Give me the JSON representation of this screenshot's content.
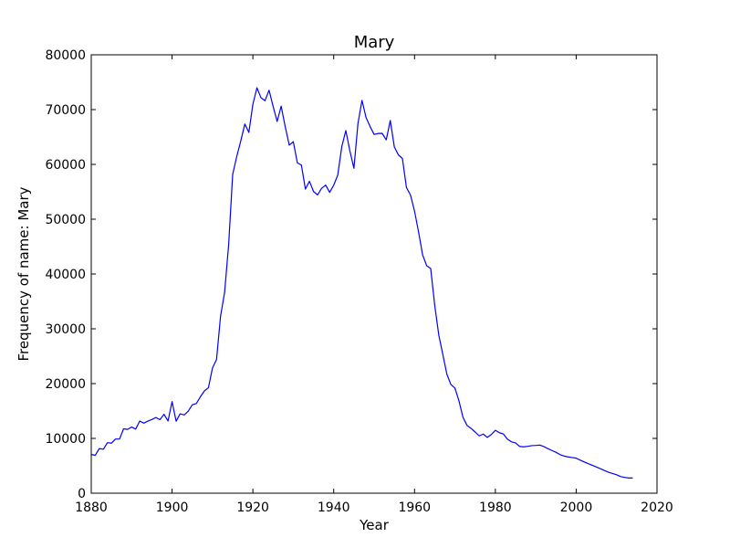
{
  "chart_data": {
    "type": "line",
    "title": "Mary",
    "xlabel": "Year",
    "ylabel": "Frequency of name: Mary",
    "xlim": [
      1880,
      2020
    ],
    "ylim": [
      0,
      80000
    ],
    "xticks": [
      1880,
      1900,
      1920,
      1940,
      1960,
      1980,
      2000,
      2020
    ],
    "yticks": [
      0,
      10000,
      20000,
      30000,
      40000,
      50000,
      60000,
      70000,
      80000
    ],
    "grid": false,
    "legend": "none",
    "line_color": "#0000ff",
    "series": [
      {
        "x": [
          1880,
          1881,
          1882,
          1883,
          1884,
          1885,
          1886,
          1887,
          1888,
          1889,
          1890,
          1891,
          1892,
          1893,
          1894,
          1895,
          1896,
          1897,
          1898,
          1899,
          1900,
          1901,
          1902,
          1903,
          1904,
          1905,
          1906,
          1907,
          1908,
          1909,
          1910,
          1911,
          1912,
          1913,
          1914,
          1915,
          1916,
          1917,
          1918,
          1919,
          1920,
          1921,
          1922,
          1923,
          1924,
          1925,
          1926,
          1927,
          1928,
          1929,
          1930,
          1931,
          1932,
          1933,
          1934,
          1935,
          1936,
          1937,
          1938,
          1939,
          1940,
          1941,
          1942,
          1943,
          1944,
          1945,
          1946,
          1947,
          1948,
          1949,
          1950,
          1951,
          1952,
          1953,
          1954,
          1955,
          1956,
          1957,
          1958,
          1959,
          1960,
          1961,
          1962,
          1963,
          1964,
          1965,
          1966,
          1967,
          1968,
          1969,
          1970,
          1971,
          1972,
          1973,
          1974,
          1975,
          1976,
          1977,
          1978,
          1979,
          1980,
          1981,
          1982,
          1983,
          1984,
          1985,
          1986,
          1987,
          1988,
          1989,
          1990,
          1991,
          1992,
          1993,
          1994,
          1995,
          1996,
          1997,
          1998,
          1999,
          2000,
          2001,
          2002,
          2003,
          2004,
          2005,
          2006,
          2007,
          2008,
          2009,
          2010,
          2011,
          2012,
          2013,
          2014
        ],
        "values": [
          7065,
          6919,
          8148,
          8012,
          9217,
          9128,
          9889,
          9888,
          11754,
          11648,
          12078,
          11703,
          13172,
          12784,
          13151,
          13446,
          13811,
          13413,
          14406,
          13172,
          16708,
          13136,
          14486,
          14275,
          14962,
          16135,
          16372,
          17580,
          18665,
          19259,
          22848,
          24390,
          32304,
          36641,
          45345,
          58187,
          61438,
          64281,
          67366,
          65838,
          70975,
          73985,
          72173,
          71631,
          73536,
          70591,
          67829,
          70636,
          66868,
          63511,
          64146,
          60295,
          59872,
          55499,
          56924,
          55064,
          54423,
          55640,
          56221,
          54903,
          56203,
          58040,
          63250,
          66176,
          62457,
          59284,
          67462,
          71681,
          68559,
          66910,
          65467,
          65643,
          65667,
          64474,
          68026,
          63187,
          61736,
          61063,
          55780,
          54415,
          51468,
          47676,
          43475,
          41528,
          40998,
          34264,
          28852,
          25308,
          21728,
          19820,
          19175,
          16822,
          13811,
          12367,
          11816,
          11167,
          10459,
          10790,
          10181,
          10714,
          11475,
          11042,
          10795,
          9849,
          9367,
          9178,
          8537,
          8462,
          8552,
          8673,
          8716,
          8785,
          8513,
          8130,
          7792,
          7470,
          7036,
          6771,
          6626,
          6513,
          6391,
          6035,
          5700,
          5381,
          5100,
          4783,
          4467,
          4133,
          3831,
          3597,
          3360,
          3027,
          2886,
          2770,
          2768
        ]
      }
    ]
  }
}
